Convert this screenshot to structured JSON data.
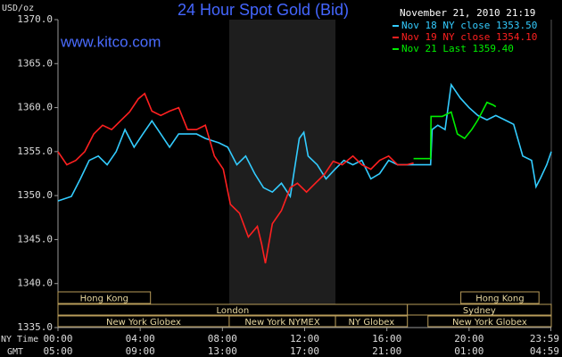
{
  "chart_data": {
    "type": "line",
    "title": "24 Hour Spot Gold (Bid)",
    "site": "www.kitco.com",
    "timestamp": "November 21, 2010 21:19",
    "ylabel": "USD/oz",
    "x_row_labels": [
      "NY Time",
      "GMT"
    ],
    "xlim": [
      0,
      24
    ],
    "xticks": [
      {
        "value": 0,
        "label": "00:00"
      },
      {
        "value": 4,
        "label": "04:00"
      },
      {
        "value": 8,
        "label": "08:00"
      },
      {
        "value": 12,
        "label": "12:00"
      },
      {
        "value": 16,
        "label": "16:00"
      },
      {
        "value": 20,
        "label": "20:00"
      },
      {
        "value": 23.98,
        "label": "23:59"
      }
    ],
    "gmt_labels": [
      "05:00",
      "09:00",
      "13:00",
      "17:00",
      "21:00",
      "01:00",
      "04:59"
    ],
    "ylim": [
      1335,
      1370
    ],
    "yticks": [
      {
        "value": 1335,
        "label": "1335.0"
      },
      {
        "value": 1340,
        "label": "1340.0"
      },
      {
        "value": 1345,
        "label": "1345.0"
      },
      {
        "value": 1350,
        "label": "1350.0"
      },
      {
        "value": 1355,
        "label": "1355.0"
      },
      {
        "value": 1360,
        "label": "1360.0"
      },
      {
        "value": 1365,
        "label": "1365.0"
      },
      {
        "value": 1370,
        "label": "1370.0"
      }
    ],
    "shaded": [
      8.33,
      13.5
    ],
    "session_rows": [
      [
        {
          "label": "Hong Kong",
          "start": 0,
          "end": 4.5
        },
        {
          "label": "Hong Kong",
          "start": 19.6,
          "end": 23.4
        }
      ],
      [
        {
          "label": "London",
          "start": 0,
          "end": 17
        },
        {
          "label": "Sydney",
          "start": 17,
          "end": 24
        }
      ],
      [
        {
          "label": "New York Globex",
          "start": 0,
          "end": 8.33
        },
        {
          "label": "New York NYMEX",
          "start": 8.33,
          "end": 13.5
        },
        {
          "label": "NY Globex",
          "start": 13.5,
          "end": 17
        },
        {
          "label": "New York Globex",
          "start": 18,
          "end": 24
        }
      ]
    ],
    "series": [
      {
        "name": "Nov 18 NY close 1353.50",
        "color": "#33ccff",
        "x": [
          0,
          0.65,
          1.09,
          1.52,
          1.96,
          2.39,
          2.83,
          3.26,
          3.7,
          4.13,
          4.57,
          5,
          5.43,
          5.87,
          6.3,
          6.74,
          7.17,
          7.83,
          8.26,
          8.7,
          9.13,
          9.57,
          10,
          10.43,
          10.87,
          11.3,
          11.74,
          11.96,
          12.17,
          12.61,
          13.04,
          13.48,
          13.91,
          14.35,
          14.78,
          15.22,
          15.65,
          16.09,
          16.52,
          16.96,
          17.3,
          18.13,
          18.2,
          18.48,
          18.83,
          19.13,
          19.57,
          20,
          20.43,
          20.87,
          21.3,
          21.74,
          22.17,
          22.61,
          23.04,
          23.26,
          23.48,
          23.78,
          24
        ],
        "values": [
          1349.4,
          1349.9,
          1351.9,
          1354,
          1354.5,
          1353.5,
          1355,
          1357.5,
          1355.5,
          1357,
          1358.5,
          1357,
          1355.5,
          1357,
          1357,
          1357,
          1356.5,
          1356,
          1355.5,
          1353.5,
          1354.5,
          1352.5,
          1350.9,
          1350.4,
          1351.4,
          1349.9,
          1356.5,
          1357.2,
          1354.5,
          1353.5,
          1351.9,
          1353,
          1354,
          1353.5,
          1354,
          1351.9,
          1352.5,
          1354,
          1353.5,
          1353.5,
          1353.5,
          1353.5,
          1357.5,
          1358,
          1357.5,
          1362.6,
          1361.1,
          1360,
          1359.1,
          1358.6,
          1359.1,
          1358.6,
          1358.1,
          1354.5,
          1354,
          1351,
          1352,
          1353.5,
          1355
        ]
      },
      {
        "name": "Nov 19 NY close 1354.10",
        "color": "#ff2020",
        "x": [
          0,
          0.43,
          0.87,
          1.3,
          1.74,
          2.17,
          2.61,
          3.04,
          3.48,
          3.91,
          4.22,
          4.57,
          5,
          5.43,
          5.87,
          6.3,
          6.74,
          7.17,
          7.61,
          8.04,
          8.39,
          8.83,
          9.26,
          9.7,
          9.91,
          10.09,
          10.43,
          10.87,
          11.3,
          11.65,
          12.09,
          12.52,
          12.96,
          13.39,
          13.83,
          14.35,
          14.78,
          15.22,
          15.65,
          16.09,
          16.52,
          16.96,
          17.3
        ],
        "values": [
          1355,
          1353.5,
          1354,
          1355,
          1357,
          1358,
          1357.5,
          1358.5,
          1359.5,
          1361,
          1361.6,
          1359.6,
          1359.1,
          1359.6,
          1360,
          1357.5,
          1357.5,
          1358,
          1354.5,
          1353,
          1349,
          1348,
          1345.3,
          1346.5,
          1344.5,
          1342.3,
          1346.8,
          1348.3,
          1350.9,
          1351.4,
          1350.4,
          1351.4,
          1352.4,
          1353.9,
          1353.5,
          1354.5,
          1353.5,
          1353,
          1354,
          1354.5,
          1353.5,
          1353.5,
          1353.7
        ]
      },
      {
        "name": "Nov 21 Last 1359.40",
        "color": "#00ee00",
        "x": [
          17.3,
          18.13,
          18.15,
          18.7,
          19.13,
          19.43,
          19.78,
          20.13,
          20.43,
          20.87,
          21.17,
          21.3
        ],
        "values": [
          1354.2,
          1354.2,
          1359,
          1359,
          1359.5,
          1357,
          1356.5,
          1357.5,
          1358.6,
          1360.6,
          1360.3,
          1360.1
        ]
      }
    ]
  }
}
